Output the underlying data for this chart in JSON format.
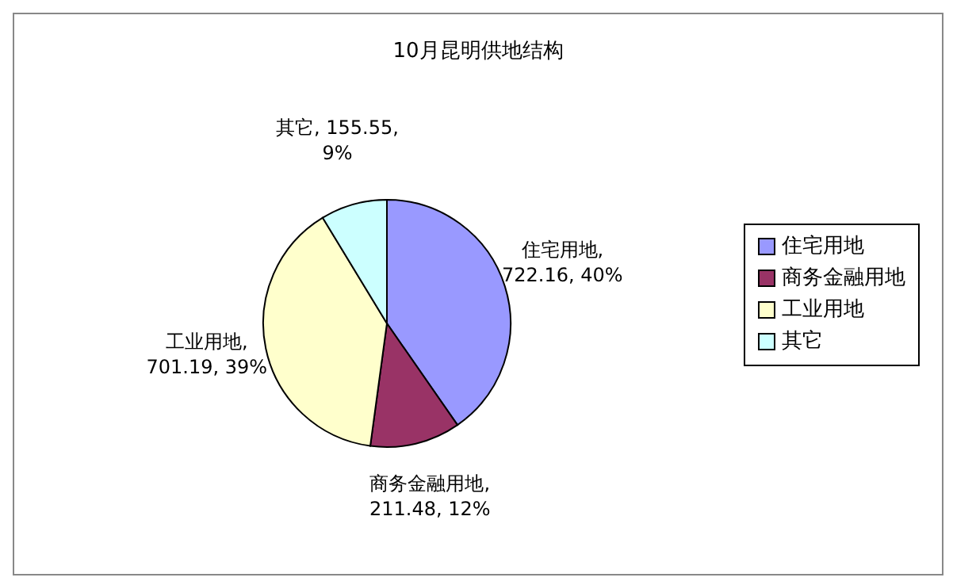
{
  "chart_data": {
    "type": "pie",
    "title": "10月昆明供地结构",
    "categories": [
      "住宅用地",
      "商务金融用地",
      "工业用地",
      "其它"
    ],
    "values": [
      722.16,
      211.48,
      701.19,
      155.55
    ],
    "colors": [
      "#9999ff",
      "#993366",
      "#ffffcc",
      "#ccffff"
    ],
    "value_labels": [
      "住宅用地,\n722.16, 40%",
      "商务金融用地,\n211.48, 12%",
      "工业用地,\n701.19, 39%",
      "其它, 155.55,\n9%"
    ],
    "legend": "right"
  }
}
